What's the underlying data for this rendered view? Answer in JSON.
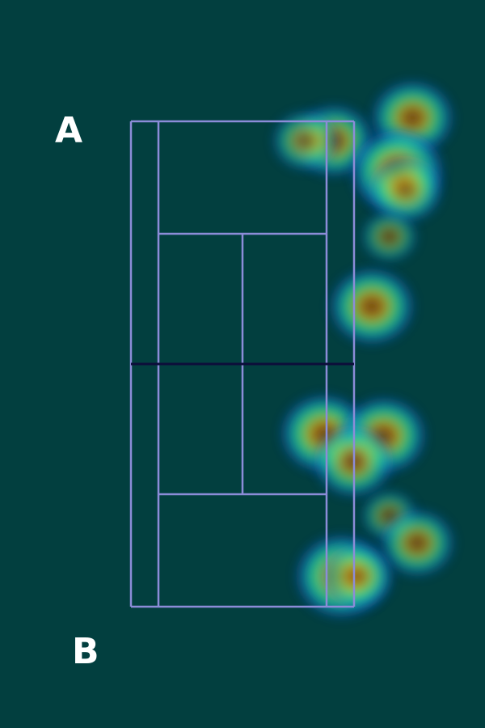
{
  "labels": {
    "player_a": "A",
    "player_b": "B"
  },
  "colors": {
    "background": "#023f3f",
    "court_lines": "#8c8cd8",
    "net": "#0d0d3a",
    "colormap": [
      "#0a2a8c",
      "#1e64dc",
      "#14c8b4",
      "#2ee080",
      "#b4e628",
      "#c89614",
      "#b43c0a",
      "#3c5a14"
    ]
  },
  "chart_data": {
    "type": "heatmap",
    "title": "",
    "xlabel": "",
    "ylabel": "",
    "xlim": [
      -1.4,
      1.4
    ],
    "ylim": [
      -4.6,
      4.6
    ],
    "axes_visible": false,
    "court_visible": true,
    "hotspots": [
      {
        "player": "A",
        "x": 0.49,
        "y": 4.06,
        "intensity": 0.75
      },
      {
        "player": "A",
        "x": -0.5,
        "y": 3.68,
        "intensity": 0.7
      },
      {
        "player": "A",
        "x": -0.85,
        "y": 3.68,
        "intensity": 0.45
      },
      {
        "player": "A",
        "x": 0.3,
        "y": 3.18,
        "intensity": 0.95
      },
      {
        "player": "A",
        "x": 0.4,
        "y": 2.88,
        "intensity": 0.6
      },
      {
        "player": "A",
        "x": 0.2,
        "y": 2.1,
        "intensity": 0.25
      },
      {
        "player": "A",
        "x": -0.02,
        "y": 0.95,
        "intensity": 0.8
      },
      {
        "player": "B",
        "x": -0.62,
        "y": -1.15,
        "intensity": 0.85
      },
      {
        "player": "B",
        "x": 0.13,
        "y": -1.18,
        "intensity": 0.8
      },
      {
        "player": "B",
        "x": -0.25,
        "y": -1.6,
        "intensity": 0.7
      },
      {
        "player": "B",
        "x": 0.2,
        "y": -2.5,
        "intensity": 0.25
      },
      {
        "player": "B",
        "x": 0.55,
        "y": -2.95,
        "intensity": 0.6
      },
      {
        "player": "B",
        "x": -0.4,
        "y": -3.5,
        "intensity": 0.95
      },
      {
        "player": "B",
        "x": -0.2,
        "y": -3.5,
        "intensity": 0.55
      }
    ]
  }
}
